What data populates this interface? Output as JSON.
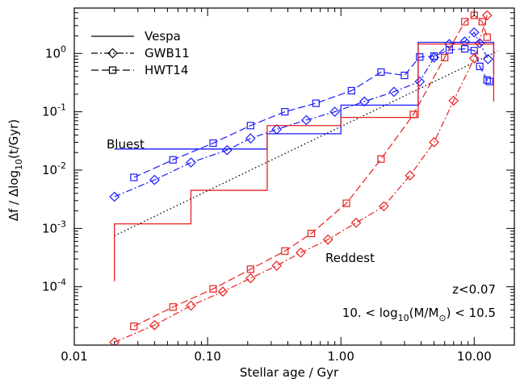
{
  "chart_data": {
    "type": "line",
    "x_scale": "log",
    "y_scale": "log",
    "xlim": [
      0.01,
      20
    ],
    "ylim": [
      1e-05,
      6
    ],
    "grid": false,
    "legend_position": "top-left",
    "xlabel": "Stellar age / Gyr",
    "ylabel_parts": [
      "Δf / Δlog",
      "10",
      "(t/Gyr)"
    ],
    "xticks": [
      {
        "value": 0.01,
        "label": "0.01"
      },
      {
        "value": 0.1,
        "label": "0.10"
      },
      {
        "value": 1,
        "label": "1.00"
      },
      {
        "value": 10,
        "label": "10.00"
      }
    ],
    "yticks": [
      {
        "value": 0.0001,
        "base": "10",
        "exp": "-4"
      },
      {
        "value": 0.001,
        "base": "10",
        "exp": "-3"
      },
      {
        "value": 0.01,
        "base": "10",
        "exp": "-2"
      },
      {
        "value": 0.1,
        "base": "10",
        "exp": "-1"
      },
      {
        "value": 1,
        "base": "10",
        "exp": "0"
      }
    ],
    "legend": [
      {
        "label": "Vespa",
        "style": "solid"
      },
      {
        "label": "GWB11",
        "style": "dashdot",
        "marker": "diamond"
      },
      {
        "label": "HWT14",
        "style": "dashed",
        "marker": "square"
      }
    ],
    "annotations": {
      "bluest": {
        "text": "Bluest",
        "color": "#1a1aff"
      },
      "reddest": {
        "text": "Reddest",
        "color": "#e8201e"
      },
      "redshift": "z<0.07",
      "mass_range": {
        "pre": "10.  < log",
        "sub1": "10",
        "mid": "(M/M",
        "sub2": "⊙",
        "post": ") < 10.5"
      }
    },
    "colors": {
      "blue": "#1a1aff",
      "red": "#e8201e",
      "black": "#000000"
    },
    "series": [
      {
        "name": "Bluest",
        "color": "#1a1aff",
        "vespa_bins": [
          {
            "x0": 0.02,
            "x1": 0.075,
            "y": 0.023
          },
          {
            "x0": 0.075,
            "x1": 0.28,
            "y": 0.023
          },
          {
            "x0": 0.28,
            "x1": 1.0,
            "y": 0.042
          },
          {
            "x0": 1.0,
            "x1": 3.8,
            "y": 0.13
          },
          {
            "x0": 3.8,
            "x1": 14,
            "y": 1.55
          }
        ],
        "vespa_drop_to": 0.45,
        "gwb11": {
          "x": [
            0.02,
            0.04,
            0.075,
            0.14,
            0.21,
            0.33,
            0.55,
            0.9,
            1.5,
            2.5,
            3.9,
            5.0,
            6.5,
            8.5,
            10.0,
            11.0,
            12.7
          ],
          "y": [
            0.0035,
            0.0068,
            0.0135,
            0.022,
            0.035,
            0.05,
            0.072,
            0.1,
            0.15,
            0.22,
            0.33,
            0.85,
            1.45,
            1.6,
            2.3,
            1.5,
            0.8
          ]
        },
        "hwt14": {
          "x": [
            0.028,
            0.055,
            0.11,
            0.21,
            0.38,
            0.65,
            1.2,
            2.0,
            3.0,
            3.9,
            5.0,
            6.5,
            8.5,
            10.0,
            11.0,
            12.5,
            13.0
          ],
          "y": [
            0.0075,
            0.015,
            0.029,
            0.058,
            0.1,
            0.14,
            0.23,
            0.48,
            0.42,
            0.87,
            0.9,
            1.15,
            1.2,
            1.12,
            0.6,
            0.35,
            0.33
          ]
        }
      },
      {
        "name": "Reddest",
        "color": "#e8201e",
        "vespa_bins": [
          {
            "x0": 0.02,
            "x1": 0.075,
            "y": 0.0012
          },
          {
            "x0": 0.075,
            "x1": 0.28,
            "y": 0.0045
          },
          {
            "x0": 0.28,
            "x1": 1.0,
            "y": 0.058
          },
          {
            "x0": 1.0,
            "x1": 3.8,
            "y": 0.08
          },
          {
            "x0": 3.8,
            "x1": 14,
            "y": 1.45
          }
        ],
        "vespa_start_from": 0.000125,
        "vespa_drop_to": 0.15,
        "gwb11": {
          "x": [
            0.02,
            0.04,
            0.075,
            0.13,
            0.21,
            0.33,
            0.5,
            0.8,
            1.3,
            2.1,
            3.3,
            5.0,
            7.0,
            10.0,
            12.5
          ],
          "y": [
            1.12e-05,
            2.2e-05,
            4.75e-05,
            8.25e-05,
            0.00014,
            0.00023,
            0.000385,
            0.000645,
            0.00125,
            0.0024,
            0.0081,
            0.03,
            0.155,
            0.82,
            4.5
          ]
        },
        "hwt14": {
          "x": [
            0.028,
            0.055,
            0.11,
            0.21,
            0.38,
            0.6,
            1.1,
            2.0,
            3.5,
            6.0,
            8.5,
            10.0,
            11.5,
            12.5
          ],
          "y": [
            2.1e-05,
            4.5e-05,
            9.2e-05,
            0.0002,
            0.00041,
            0.00082,
            0.0027,
            0.0155,
            0.09,
            0.85,
            3.5,
            4.5,
            3.5,
            1.9
          ]
        }
      }
    ],
    "reference_line": {
      "style": "dotted",
      "color": "#000000",
      "x": [
        0.02,
        15
      ],
      "y": [
        0.00075,
        1.1
      ]
    }
  }
}
